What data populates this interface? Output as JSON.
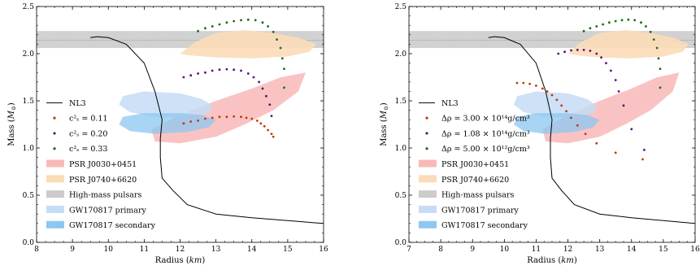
{
  "chart_data": [
    {
      "type": "scatter",
      "xlabel_text": "Radius",
      "xlabel_unit": "km",
      "ylabel_text": "Mass",
      "ylabel_unit": "M",
      "ylabel_sub": "⊙",
      "xlim": [
        8,
        16
      ],
      "ylim": [
        0.0,
        2.5
      ],
      "xticks": [
        8,
        9,
        10,
        11,
        12,
        13,
        14,
        15,
        16
      ],
      "yticks": [
        0.0,
        0.5,
        1.0,
        1.5,
        2.0,
        2.5
      ],
      "xtick_labels": [
        "8",
        "9",
        "10",
        "11",
        "12",
        "13",
        "14",
        "15",
        "16"
      ],
      "ytick_labels": [
        "0.0",
        "0.5",
        "1.0",
        "1.5",
        "2.0",
        "2.5"
      ],
      "grid": false,
      "legend_position": "left",
      "legend": [
        {
          "label": "NL3",
          "kind": "line",
          "color": "#000000"
        },
        {
          "label": "c²ₛ = 0.11",
          "kind": "dot",
          "color": "#c0390b"
        },
        {
          "label": "c²ₛ = 0.20",
          "kind": "dot",
          "color": "#5b0f7a"
        },
        {
          "label": "c²ₛ = 0.33",
          "kind": "dot",
          "color": "#1a6b1a"
        },
        {
          "label": "PSR J0030+0451",
          "kind": "patch",
          "color": "#f9b9b9"
        },
        {
          "label": "PSR J0740+6620",
          "kind": "patch",
          "color": "#fbdcb8"
        },
        {
          "label": "High-mass pulsars",
          "kind": "patch",
          "color": "#cccccc"
        },
        {
          "label": "GW170817 primary",
          "kind": "patch",
          "color": "#c6dcf5"
        },
        {
          "label": "GW170817 secondary",
          "kind": "patch",
          "color": "#8cc7f0"
        }
      ],
      "bands": {
        "high_mass_pulsars": {
          "ymin": 2.06,
          "ymax": 2.24,
          "mid": 2.14
        }
      },
      "regions": {
        "psr_j0740": [
          [
            12.0,
            2.0
          ],
          [
            12.4,
            2.12
          ],
          [
            13.0,
            2.22
          ],
          [
            13.8,
            2.25
          ],
          [
            14.6,
            2.22
          ],
          [
            15.3,
            2.17
          ],
          [
            15.8,
            2.1
          ],
          [
            15.6,
            2.02
          ],
          [
            15.0,
            1.97
          ],
          [
            14.0,
            1.95
          ],
          [
            13.0,
            1.96
          ],
          [
            12.3,
            1.98
          ]
        ],
        "psr_j0030": [
          [
            11.2,
            1.2
          ],
          [
            12.0,
            1.35
          ],
          [
            13.0,
            1.5
          ],
          [
            14.0,
            1.63
          ],
          [
            14.8,
            1.75
          ],
          [
            15.5,
            1.8
          ],
          [
            15.3,
            1.6
          ],
          [
            14.6,
            1.4
          ],
          [
            13.8,
            1.25
          ],
          [
            13.0,
            1.12
          ],
          [
            12.0,
            1.05
          ],
          [
            11.3,
            1.07
          ]
        ],
        "gw_primary": [
          [
            10.3,
            1.46
          ],
          [
            10.4,
            1.55
          ],
          [
            11.0,
            1.6
          ],
          [
            12.0,
            1.58
          ],
          [
            12.6,
            1.52
          ],
          [
            12.9,
            1.45
          ],
          [
            12.8,
            1.37
          ],
          [
            12.2,
            1.32
          ],
          [
            11.3,
            1.33
          ],
          [
            10.6,
            1.38
          ]
        ],
        "gw_secondary": [
          [
            10.3,
            1.25
          ],
          [
            10.4,
            1.33
          ],
          [
            11.0,
            1.37
          ],
          [
            12.0,
            1.37
          ],
          [
            12.6,
            1.35
          ],
          [
            13.0,
            1.3
          ],
          [
            12.8,
            1.22
          ],
          [
            12.2,
            1.17
          ],
          [
            11.3,
            1.15
          ],
          [
            10.6,
            1.18
          ]
        ]
      },
      "nl3_curve": {
        "x": [
          16.0,
          15.0,
          14.0,
          13.0,
          12.2,
          11.8,
          11.5,
          11.45,
          11.45,
          11.5,
          11.3,
          11.0,
          10.5,
          10.0,
          9.7,
          9.5
        ],
        "y": [
          0.2,
          0.23,
          0.26,
          0.3,
          0.4,
          0.55,
          0.68,
          0.9,
          1.1,
          1.3,
          1.6,
          1.9,
          2.1,
          2.17,
          2.18,
          2.17
        ]
      },
      "series": [
        {
          "name": "c²ₛ = 0.11",
          "color": "#c0390b",
          "x": [
            12.1,
            12.3,
            12.5,
            12.7,
            12.9,
            13.1,
            13.3,
            13.5,
            13.7,
            13.85,
            14.0,
            14.15,
            14.25,
            14.35,
            14.45,
            14.55,
            14.6
          ],
          "y": [
            1.26,
            1.28,
            1.29,
            1.31,
            1.32,
            1.33,
            1.33,
            1.335,
            1.33,
            1.32,
            1.31,
            1.29,
            1.26,
            1.23,
            1.19,
            1.15,
            1.12
          ]
        },
        {
          "name": "c²ₛ = 0.20",
          "color": "#5b0f7a",
          "x": [
            12.1,
            12.3,
            12.5,
            12.7,
            12.9,
            13.1,
            13.3,
            13.5,
            13.7,
            13.9,
            14.05,
            14.2,
            14.3,
            14.4,
            14.5,
            14.55
          ],
          "y": [
            1.75,
            1.77,
            1.79,
            1.8,
            1.82,
            1.83,
            1.835,
            1.83,
            1.82,
            1.79,
            1.75,
            1.7,
            1.63,
            1.55,
            1.46,
            1.34
          ]
        },
        {
          "name": "c²ₛ = 0.33",
          "color": "#1a6b1a",
          "x": [
            12.5,
            12.7,
            12.9,
            13.1,
            13.3,
            13.5,
            13.7,
            13.9,
            14.1,
            14.3,
            14.45,
            14.6,
            14.7,
            14.8,
            14.85,
            14.9,
            14.9
          ],
          "y": [
            2.24,
            2.27,
            2.29,
            2.31,
            2.33,
            2.345,
            2.355,
            2.36,
            2.355,
            2.33,
            2.29,
            2.23,
            2.15,
            2.06,
            1.95,
            1.84,
            1.64
          ]
        }
      ]
    },
    {
      "type": "scatter",
      "xlabel_text": "Radius",
      "xlabel_unit": "km",
      "ylabel_text": "Mass",
      "ylabel_unit": "M",
      "ylabel_sub": "⊙",
      "xlim": [
        7,
        16
      ],
      "ylim": [
        0.0,
        2.5
      ],
      "xticks": [
        7,
        8,
        9,
        10,
        11,
        12,
        13,
        14,
        15,
        16
      ],
      "yticks": [
        0.0,
        0.5,
        1.0,
        1.5,
        2.0,
        2.5
      ],
      "xtick_labels": [
        "7",
        "8",
        "9",
        "10",
        "11",
        "12",
        "13",
        "14",
        "15",
        "16"
      ],
      "ytick_labels": [
        "0.0",
        "0.5",
        "1.0",
        "1.5",
        "2.0",
        "2.5"
      ],
      "grid": false,
      "legend_position": "left",
      "legend": [
        {
          "label": "NL3",
          "kind": "line",
          "color": "#000000"
        },
        {
          "label": "Δρ = 3.00 × 10¹⁴g/cm³",
          "kind": "dot",
          "color": "#c0390b"
        },
        {
          "label": "Δρ = 1.08 × 10¹⁴g/cm³",
          "kind": "dot",
          "color": "#5b0f7a"
        },
        {
          "label": "Δρ = 5.00 × 10¹²g/cm³",
          "kind": "dot",
          "color": "#1a6b1a"
        },
        {
          "label": "PSR J0030+0451",
          "kind": "patch",
          "color": "#f9b9b9"
        },
        {
          "label": "PSR J0740+6620",
          "kind": "patch",
          "color": "#fbdcb8"
        },
        {
          "label": "High-mass pulsars",
          "kind": "patch",
          "color": "#cccccc"
        },
        {
          "label": "GW170817 primary",
          "kind": "patch",
          "color": "#c6dcf5"
        },
        {
          "label": "GW170817 secondary",
          "kind": "patch",
          "color": "#8cc7f0"
        }
      ],
      "bands": {
        "high_mass_pulsars": {
          "ymin": 2.06,
          "ymax": 2.24,
          "mid": 2.14
        }
      },
      "regions": {
        "psr_j0740": [
          [
            12.0,
            2.0
          ],
          [
            12.4,
            2.12
          ],
          [
            13.0,
            2.22
          ],
          [
            13.8,
            2.25
          ],
          [
            14.6,
            2.22
          ],
          [
            15.3,
            2.17
          ],
          [
            15.8,
            2.1
          ],
          [
            15.6,
            2.02
          ],
          [
            15.0,
            1.97
          ],
          [
            14.0,
            1.95
          ],
          [
            13.0,
            1.96
          ],
          [
            12.3,
            1.98
          ]
        ],
        "psr_j0030": [
          [
            11.2,
            1.2
          ],
          [
            12.0,
            1.35
          ],
          [
            13.0,
            1.5
          ],
          [
            14.0,
            1.63
          ],
          [
            14.8,
            1.75
          ],
          [
            15.5,
            1.8
          ],
          [
            15.3,
            1.6
          ],
          [
            14.6,
            1.4
          ],
          [
            13.8,
            1.25
          ],
          [
            13.0,
            1.12
          ],
          [
            12.0,
            1.05
          ],
          [
            11.3,
            1.07
          ]
        ],
        "gw_primary": [
          [
            10.3,
            1.46
          ],
          [
            10.4,
            1.55
          ],
          [
            11.0,
            1.6
          ],
          [
            12.0,
            1.58
          ],
          [
            12.6,
            1.52
          ],
          [
            12.9,
            1.45
          ],
          [
            12.8,
            1.37
          ],
          [
            12.2,
            1.32
          ],
          [
            11.3,
            1.33
          ],
          [
            10.6,
            1.38
          ]
        ],
        "gw_secondary": [
          [
            10.3,
            1.25
          ],
          [
            10.4,
            1.33
          ],
          [
            11.0,
            1.37
          ],
          [
            12.0,
            1.37
          ],
          [
            12.6,
            1.35
          ],
          [
            13.0,
            1.3
          ],
          [
            12.8,
            1.22
          ],
          [
            12.2,
            1.17
          ],
          [
            11.3,
            1.15
          ],
          [
            10.6,
            1.18
          ]
        ]
      },
      "nl3_curve": {
        "x": [
          16.0,
          15.0,
          14.0,
          13.0,
          12.2,
          11.8,
          11.5,
          11.45,
          11.45,
          11.5,
          11.3,
          11.0,
          10.5,
          10.0,
          9.7,
          9.5
        ],
        "y": [
          0.2,
          0.23,
          0.26,
          0.3,
          0.4,
          0.55,
          0.68,
          0.9,
          1.1,
          1.3,
          1.6,
          1.9,
          2.1,
          2.17,
          2.18,
          2.17
        ]
      },
      "series": [
        {
          "name": "Δρ = 3.00 × 10¹⁴g/cm³",
          "color": "#c0390b",
          "x": [
            10.4,
            10.6,
            10.8,
            11.0,
            11.2,
            11.35,
            11.5,
            11.65,
            11.8,
            11.95,
            12.1,
            12.3,
            12.55,
            12.9,
            13.5,
            14.35
          ],
          "y": [
            1.69,
            1.69,
            1.68,
            1.66,
            1.63,
            1.6,
            1.56,
            1.51,
            1.45,
            1.39,
            1.32,
            1.24,
            1.15,
            1.05,
            0.95,
            0.88
          ]
        },
        {
          "name": "Δρ = 1.08 × 10¹⁴g/cm³",
          "color": "#5b0f7a",
          "x": [
            11.7,
            11.9,
            12.1,
            12.3,
            12.5,
            12.7,
            12.9,
            13.05,
            13.2,
            13.35,
            13.5,
            13.6,
            13.75,
            14.0,
            14.4
          ],
          "y": [
            2.0,
            2.02,
            2.035,
            2.04,
            2.04,
            2.03,
            2.0,
            1.96,
            1.9,
            1.82,
            1.72,
            1.6,
            1.45,
            1.2,
            0.98
          ]
        },
        {
          "name": "Δρ = 5.00 × 10¹²g/cm³",
          "color": "#1a6b1a",
          "x": [
            12.5,
            12.7,
            12.9,
            13.1,
            13.3,
            13.5,
            13.7,
            13.9,
            14.1,
            14.3,
            14.45,
            14.6,
            14.7,
            14.8,
            14.85,
            14.9,
            14.9
          ],
          "y": [
            2.24,
            2.27,
            2.29,
            2.31,
            2.33,
            2.345,
            2.355,
            2.36,
            2.355,
            2.33,
            2.29,
            2.23,
            2.15,
            2.06,
            1.95,
            1.84,
            1.64
          ]
        }
      ]
    }
  ]
}
